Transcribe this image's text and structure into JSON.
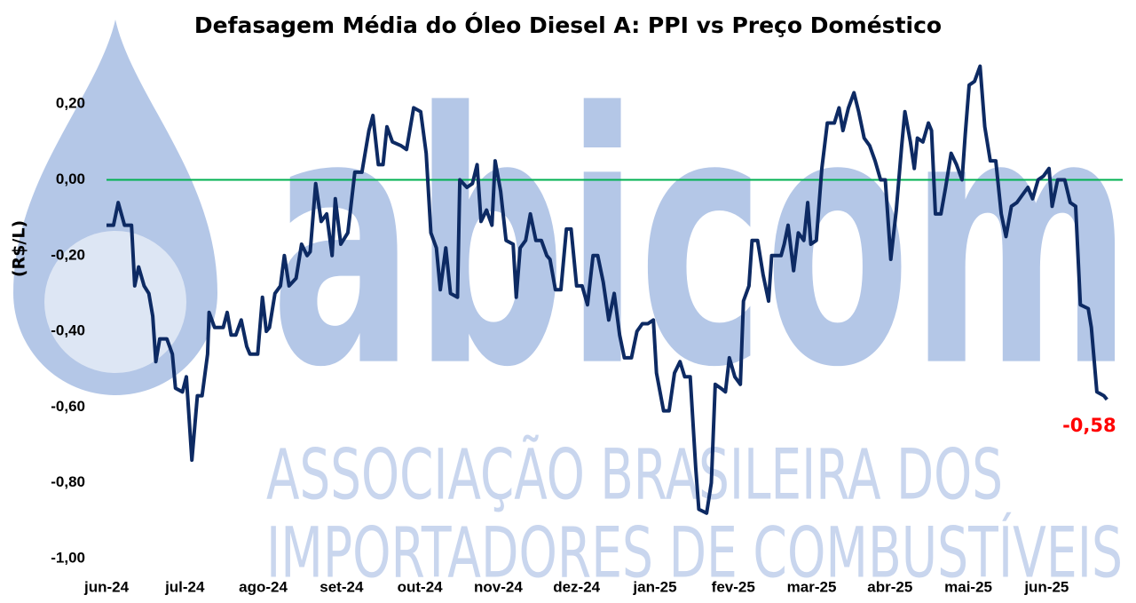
{
  "chart_data": {
    "type": "line",
    "title": "Defasagem Média do Óleo Diesel A: PPI vs Preço Doméstico",
    "y_label": "(R$/L)",
    "watermark": [
      "abicom",
      "ASSOCIAÇÃO BRASILEIRA DOS",
      "IMPORTADORES DE COMBUSTÍVEIS"
    ],
    "xlim": [
      0,
      12.97
    ],
    "xticks": [
      {
        "value": 0,
        "label": "jun-24"
      },
      {
        "value": 1,
        "label": "jul-24"
      },
      {
        "value": 2,
        "label": "ago-24"
      },
      {
        "value": 3,
        "label": "set-24"
      },
      {
        "value": 4,
        "label": "out-24"
      },
      {
        "value": 5,
        "label": "nov-24"
      },
      {
        "value": 6,
        "label": "dez-24"
      },
      {
        "value": 7,
        "label": "jan-25"
      },
      {
        "value": 8,
        "label": "fev-25"
      },
      {
        "value": 9,
        "label": "mar-25"
      },
      {
        "value": 10,
        "label": "abr-25"
      },
      {
        "value": 11,
        "label": "mai-25"
      },
      {
        "value": 12,
        "label": "jun-25"
      }
    ],
    "ylim": [
      -1,
      0.3
    ],
    "yticks": [
      {
        "value": -1,
        "label": "-1,00"
      },
      {
        "value": -0.8,
        "label": "-0,80"
      },
      {
        "value": -0.6,
        "label": "-0,60"
      },
      {
        "value": -0.4,
        "label": "-0,40"
      },
      {
        "value": -0.2,
        "label": "-0,20"
      },
      {
        "value": 0,
        "label": "0,00"
      },
      {
        "value": 0.2,
        "label": "0,20"
      }
    ],
    "reference_line": {
      "value": 0,
      "color": "#00b050"
    },
    "series": [
      {
        "color": "#0d2a63",
        "x": [
          0,
          0.09,
          0.15,
          0.23,
          0.32,
          0.36,
          0.41,
          0.48,
          0.54,
          0.59,
          0.63,
          0.68,
          0.77,
          0.84,
          0.88,
          0.97,
          1.02,
          1.09,
          1.16,
          1.22,
          1.29,
          1.31,
          1.38,
          1.49,
          1.54,
          1.59,
          1.65,
          1.72,
          1.79,
          1.83,
          1.93,
          1.99,
          2.04,
          2.08,
          2.15,
          2.22,
          2.27,
          2.33,
          2.42,
          2.49,
          2.56,
          2.6,
          2.67,
          2.74,
          2.81,
          2.88,
          2.92,
          2.99,
          3.08,
          3.17,
          3.26,
          3.35,
          3.4,
          3.47,
          3.53,
          3.58,
          3.65,
          3.76,
          3.83,
          3.92,
          4.01,
          4.08,
          4.14,
          4.21,
          4.26,
          4.33,
          4.39,
          4.48,
          4.51,
          4.6,
          4.67,
          4.73,
          4.78,
          4.85,
          4.92,
          4.96,
          5.03,
          5.1,
          5.19,
          5.23,
          5.28,
          5.35,
          5.41,
          5.48,
          5.55,
          5.62,
          5.66,
          5.73,
          5.8,
          5.87,
          5.93,
          6.0,
          6.07,
          6.14,
          6.21,
          6.27,
          6.34,
          6.41,
          6.48,
          6.55,
          6.61,
          6.7,
          6.77,
          6.84,
          6.91,
          6.98,
          7.02,
          7.11,
          7.18,
          7.25,
          7.32,
          7.38,
          7.45,
          7.52,
          7.56,
          7.66,
          7.72,
          7.77,
          7.84,
          7.9,
          7.95,
          8.02,
          8.09,
          8.13,
          8.2,
          8.24,
          8.31,
          8.38,
          8.45,
          8.49,
          8.61,
          8.65,
          8.7,
          8.77,
          8.83,
          8.9,
          8.95,
          8.99,
          9.06,
          9.13,
          9.2,
          9.29,
          9.35,
          9.4,
          9.47,
          9.54,
          9.6,
          9.67,
          9.74,
          9.81,
          9.88,
          9.94,
          10.01,
          10.08,
          10.15,
          10.19,
          10.26,
          10.31,
          10.35,
          10.42,
          10.49,
          10.53,
          10.58,
          10.65,
          10.71,
          10.78,
          10.85,
          10.92,
          10.96,
          11.01,
          11.08,
          11.15,
          11.21,
          11.28,
          11.35,
          11.42,
          11.48,
          11.55,
          11.62,
          11.69,
          11.76,
          11.82,
          11.89,
          11.96,
          12.03,
          12.07,
          12.14,
          12.23,
          12.3,
          12.37,
          12.43,
          12.53,
          12.57,
          12.64,
          12.73,
          12.77
        ],
        "values": [
          -0.12,
          -0.12,
          -0.06,
          -0.12,
          -0.12,
          -0.28,
          -0.23,
          -0.28,
          -0.3,
          -0.36,
          -0.48,
          -0.42,
          -0.42,
          -0.46,
          -0.55,
          -0.56,
          -0.52,
          -0.74,
          -0.57,
          -0.57,
          -0.46,
          -0.35,
          -0.39,
          -0.39,
          -0.35,
          -0.41,
          -0.41,
          -0.37,
          -0.44,
          -0.46,
          -0.46,
          -0.31,
          -0.4,
          -0.39,
          -0.3,
          -0.28,
          -0.2,
          -0.28,
          -0.26,
          -0.17,
          -0.2,
          -0.19,
          -0.01,
          -0.11,
          -0.09,
          -0.2,
          -0.05,
          -0.17,
          -0.14,
          0.02,
          0.02,
          0.13,
          0.17,
          0.04,
          0.04,
          0.14,
          0.1,
          0.09,
          0.08,
          0.19,
          0.18,
          0.07,
          -0.14,
          -0.18,
          -0.29,
          -0.18,
          -0.3,
          -0.31,
          0.0,
          -0.02,
          -0.01,
          0.04,
          -0.11,
          -0.08,
          -0.12,
          0.05,
          -0.03,
          -0.16,
          -0.17,
          -0.31,
          -0.18,
          -0.16,
          -0.09,
          -0.16,
          -0.16,
          -0.2,
          -0.21,
          -0.29,
          -0.29,
          -0.13,
          -0.13,
          -0.28,
          -0.28,
          -0.33,
          -0.2,
          -0.2,
          -0.27,
          -0.37,
          -0.3,
          -0.41,
          -0.47,
          -0.47,
          -0.4,
          -0.38,
          -0.38,
          -0.37,
          -0.51,
          -0.61,
          -0.61,
          -0.51,
          -0.48,
          -0.52,
          -0.52,
          -0.76,
          -0.87,
          -0.88,
          -0.8,
          -0.54,
          -0.55,
          -0.56,
          -0.47,
          -0.52,
          -0.54,
          -0.32,
          -0.28,
          -0.16,
          -0.16,
          -0.25,
          -0.32,
          -0.2,
          -0.2,
          -0.17,
          -0.12,
          -0.24,
          -0.14,
          -0.16,
          -0.06,
          -0.17,
          -0.16,
          0.03,
          0.15,
          0.15,
          0.19,
          0.13,
          0.19,
          0.23,
          0.18,
          0.11,
          0.09,
          0.05,
          0.0,
          0.0,
          -0.21,
          -0.08,
          0.09,
          0.18,
          0.1,
          0.03,
          0.11,
          0.1,
          0.15,
          0.13,
          -0.09,
          -0.09,
          -0.02,
          0.07,
          0.04,
          0.0,
          0.12,
          0.25,
          0.26,
          0.3,
          0.14,
          0.05,
          0.05,
          -0.09,
          -0.15,
          -0.07,
          -0.06,
          -0.04,
          -0.02,
          -0.05,
          0.0,
          0.01,
          0.03,
          -0.07,
          0.0,
          0.0,
          -0.06,
          -0.07,
          -0.33,
          -0.34,
          -0.39,
          -0.56,
          -0.57,
          -0.58
        ]
      }
    ],
    "annotation": {
      "text": "-0,58",
      "value": -0.58,
      "color": "#ff0000"
    }
  }
}
